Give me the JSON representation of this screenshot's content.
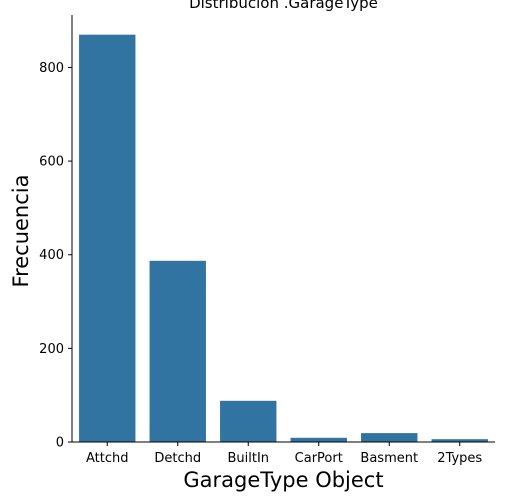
{
  "chart_data": {
    "type": "bar",
    "title": "Distribución .GarageType",
    "xlabel": "GarageType Object",
    "ylabel": "Frecuencia",
    "categories": [
      "Attchd",
      "Detchd",
      "BuiltIn",
      "CarPort",
      "Basment",
      "2Types"
    ],
    "values": [
      870,
      387,
      88,
      9,
      19,
      6
    ],
    "ylim": [
      0,
      912
    ],
    "yticks": [
      0,
      200,
      400,
      600,
      800
    ],
    "bar_color": "#3274a1",
    "grid": false,
    "legend": "none"
  }
}
